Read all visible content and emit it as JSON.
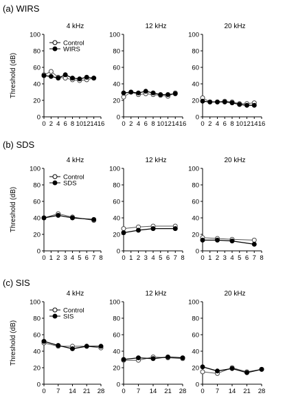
{
  "chart_data": [
    {
      "type": "line",
      "panel_label": "(a) WIRS",
      "ylabel": "Threshold (dB)",
      "ylim": [
        0,
        100
      ],
      "yticks": [
        0,
        20,
        40,
        60,
        80,
        100
      ],
      "xlim": [
        0,
        16
      ],
      "xticks": [
        0,
        2,
        4,
        6,
        8,
        10,
        12,
        14,
        16
      ],
      "legend": {
        "position": "top-left",
        "entries": [
          "Control",
          "WIRS"
        ]
      },
      "charts": [
        {
          "title": "4 kHz",
          "series": [
            {
              "name": "Control",
              "marker": "open",
              "x": [
                0,
                2,
                4,
                6,
                8,
                10,
                12,
                14
              ],
              "y": [
                51,
                55,
                48,
                47,
                45,
                44,
                45,
                47
              ]
            },
            {
              "name": "WIRS",
              "marker": "filled",
              "x": [
                0,
                2,
                4,
                6,
                8,
                10,
                12,
                14
              ],
              "y": [
                50,
                49,
                47,
                51,
                47,
                46,
                48,
                47
              ]
            }
          ]
        },
        {
          "title": "12 kHz",
          "series": [
            {
              "name": "Control",
              "marker": "open",
              "x": [
                0,
                2,
                4,
                6,
                8,
                10,
                12,
                14
              ],
              "y": [
                24,
                30,
                27,
                28,
                27,
                26,
                25,
                29
              ]
            },
            {
              "name": "WIRS",
              "marker": "filled",
              "x": [
                0,
                2,
                4,
                6,
                8,
                10,
                12,
                14
              ],
              "y": [
                29,
                30,
                29,
                31,
                29,
                27,
                27,
                28
              ]
            }
          ]
        },
        {
          "title": "20 kHz",
          "series": [
            {
              "name": "Control",
              "marker": "open",
              "x": [
                0,
                2,
                4,
                6,
                8,
                10,
                12,
                14
              ],
              "y": [
                23,
                18,
                18,
                19,
                18,
                16,
                16,
                17
              ]
            },
            {
              "name": "WIRS",
              "marker": "filled",
              "x": [
                0,
                2,
                4,
                6,
                8,
                10,
                12,
                14
              ],
              "y": [
                19,
                18,
                18,
                18,
                17,
                15,
                14,
                14
              ]
            }
          ]
        }
      ]
    },
    {
      "type": "line",
      "panel_label": "(b) SDS",
      "ylabel": "Threshold (dB)",
      "ylim": [
        0,
        100
      ],
      "yticks": [
        0,
        20,
        40,
        60,
        80,
        100
      ],
      "xlim": [
        0,
        8
      ],
      "xticks": [
        0,
        1,
        2,
        3,
        4,
        5,
        6,
        7,
        8
      ],
      "legend": {
        "position": "top-left",
        "entries": [
          "Control",
          "SDS"
        ]
      },
      "charts": [
        {
          "title": "4 kHz",
          "series": [
            {
              "name": "Control",
              "marker": "open",
              "x": [
                0,
                2,
                4,
                7
              ],
              "y": [
                40,
                45,
                41,
                37
              ]
            },
            {
              "name": "SDS",
              "marker": "filled",
              "x": [
                0,
                2,
                4,
                7
              ],
              "y": [
                40,
                43,
                40,
                38
              ]
            }
          ]
        },
        {
          "title": "12 kHz",
          "series": [
            {
              "name": "Control",
              "marker": "open",
              "x": [
                0,
                2,
                4,
                7
              ],
              "y": [
                27,
                29,
                30,
                30
              ]
            },
            {
              "name": "SDS",
              "marker": "filled",
              "x": [
                0,
                2,
                4,
                7
              ],
              "y": [
                22,
                25,
                27,
                27
              ]
            }
          ]
        },
        {
          "title": "20 kHz",
          "series": [
            {
              "name": "Control",
              "marker": "open",
              "x": [
                0,
                2,
                4,
                7
              ],
              "y": [
                16,
                15,
                14,
                13
              ]
            },
            {
              "name": "SDS",
              "marker": "filled",
              "x": [
                0,
                2,
                4,
                7
              ],
              "y": [
                13,
                13,
                12,
                8
              ]
            }
          ]
        }
      ]
    },
    {
      "type": "line",
      "panel_label": "(c) SIS",
      "ylabel": "Threshold (dB)",
      "ylim": [
        0,
        100
      ],
      "yticks": [
        0,
        20,
        40,
        60,
        80,
        100
      ],
      "xlim": [
        0,
        28
      ],
      "xticks": [
        0,
        7,
        14,
        21,
        28
      ],
      "legend": {
        "position": "top-left",
        "entries": [
          "Control",
          "SIS"
        ]
      },
      "charts": [
        {
          "title": "4 kHz",
          "series": [
            {
              "name": "Control",
              "marker": "open",
              "x": [
                0,
                7,
                14,
                21,
                28
              ],
              "y": [
                50,
                46,
                46,
                46,
                44
              ]
            },
            {
              "name": "SIS",
              "marker": "filled",
              "x": [
                0,
                7,
                14,
                21,
                28
              ],
              "y": [
                52,
                47,
                43,
                46,
                46
              ]
            }
          ]
        },
        {
          "title": "12 kHz",
          "series": [
            {
              "name": "Control",
              "marker": "open",
              "x": [
                0,
                7,
                14,
                21,
                28
              ],
              "y": [
                29,
                29,
                33,
                32,
                31
              ]
            },
            {
              "name": "SIS",
              "marker": "filled",
              "x": [
                0,
                7,
                14,
                21,
                28
              ],
              "y": [
                30,
                32,
                31,
                33,
                32
              ]
            }
          ]
        },
        {
          "title": "20 kHz",
          "series": [
            {
              "name": "Control",
              "marker": "open",
              "x": [
                0,
                7,
                14,
                21,
                28
              ],
              "y": [
                15,
                13,
                20,
                15,
                18
              ]
            },
            {
              "name": "SIS",
              "marker": "filled",
              "x": [
                0,
                7,
                14,
                21,
                28
              ],
              "y": [
                21,
                16,
                19,
                14,
                18
              ]
            }
          ]
        }
      ]
    }
  ]
}
